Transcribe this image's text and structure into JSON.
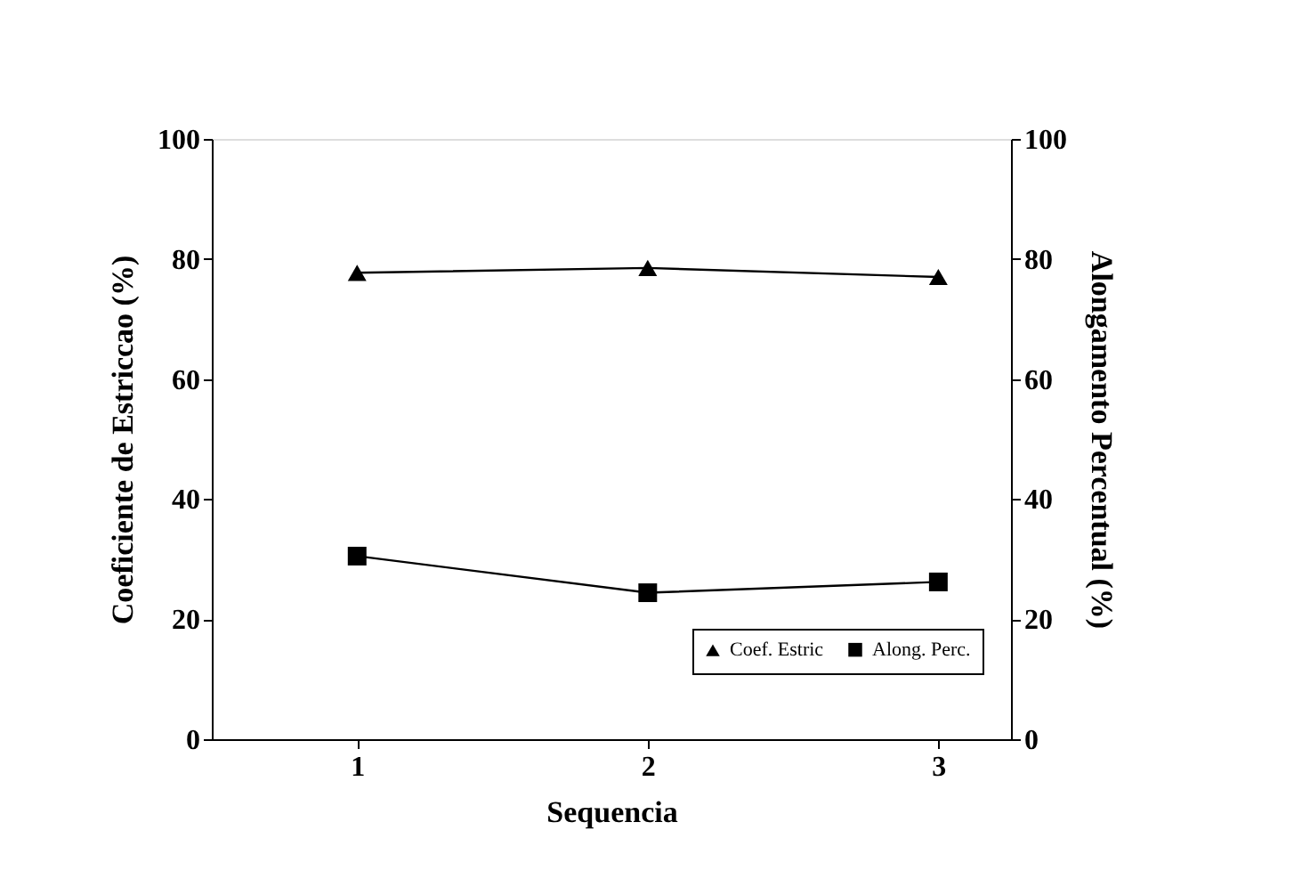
{
  "chart_data": {
    "type": "line",
    "xlabel": "Sequencia",
    "ylabel": "Coeficiente de Estriccao (%)",
    "y2label": "Alongamento Percentual (%)",
    "x": [
      1,
      2,
      3
    ],
    "series": [
      {
        "name": "Coef. Estric",
        "color": "#000000",
        "values": [
          77.7,
          78.5,
          77.0
        ],
        "marker": "triangle"
      },
      {
        "name": "Along. Perc.",
        "color": "#000000",
        "values": [
          30.5,
          24.4,
          26.2
        ],
        "marker": "square",
        "axis": "y2"
      }
    ],
    "xlim": [
      0.5,
      3.25
    ],
    "xticks": [
      1,
      2,
      3
    ],
    "ylim": [
      0,
      100
    ],
    "yticks": [
      0,
      20,
      40,
      60,
      80,
      100
    ],
    "y2lim": [
      0,
      100
    ],
    "y2ticks": [
      0,
      20,
      40,
      60,
      80,
      100
    ],
    "legend": "bottom right",
    "grid": false,
    "line_style": "solid"
  }
}
